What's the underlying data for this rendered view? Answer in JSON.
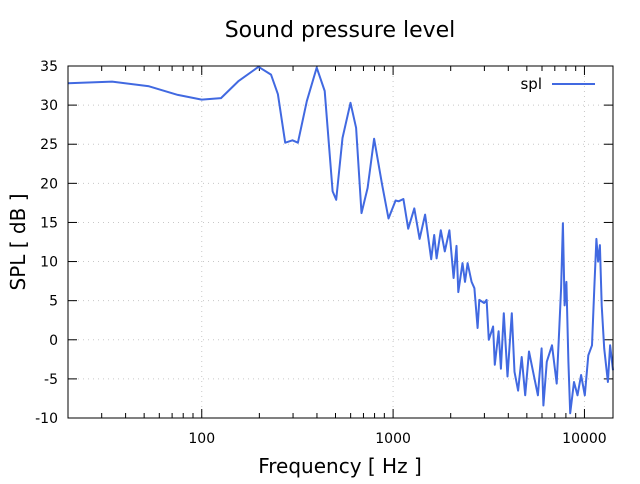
{
  "chart_data": {
    "type": "line",
    "title": "Sound pressure level",
    "xlabel": "Frequency [ Hz ]",
    "ylabel": "SPL [ dB ]",
    "xscale": "log",
    "xlim": [
      20,
      14100
    ],
    "ylim": [
      -10,
      35
    ],
    "xticks": [
      100,
      1000,
      10000
    ],
    "xtick_labels": [
      "100",
      "1000",
      "10000"
    ],
    "yticks": [
      -10,
      -5,
      0,
      5,
      10,
      15,
      20,
      25,
      30,
      35
    ],
    "ytick_labels": [
      "-10",
      "-5",
      "0",
      "5",
      "10",
      "15",
      "20",
      "25",
      "30",
      "35"
    ],
    "grid": true,
    "legend_position": "top-right",
    "colors": {
      "spl": "#4169e1"
    },
    "series": [
      {
        "name": "spl",
        "x": [
          20,
          34,
          53,
          75,
          100,
          126,
          156,
          198,
          230,
          250,
          273,
          298,
          318,
          354,
          399,
          439,
          483,
          504,
          544,
          599,
          641,
          684,
          736,
          796,
          875,
          946,
          1031,
          1069,
          1132,
          1199,
          1290,
          1376,
          1469,
          1581,
          1640,
          1687,
          1775,
          1862,
          1968,
          2072,
          2144,
          2191,
          2306,
          2375,
          2450,
          2572,
          2660,
          2765,
          2820,
          2991,
          3080,
          3162,
          3330,
          3400,
          3560,
          3660,
          3790,
          3960,
          4170,
          4310,
          4500,
          4700,
          4900,
          5130,
          5390,
          5710,
          5970,
          6100,
          6360,
          6770,
          7160,
          7390,
          7550,
          7720,
          7880,
          8050,
          8240,
          8420,
          8820,
          9200,
          9610,
          10040,
          10480,
          10950,
          11260,
          11540,
          11790,
          12050,
          12310,
          12690,
          13260,
          13620,
          14100
        ],
        "y": [
          32.8,
          33.0,
          32.4,
          31.3,
          30.7,
          30.9,
          33.1,
          34.9,
          33.9,
          31.4,
          25.2,
          25.5,
          25.2,
          30.5,
          34.8,
          31.8,
          19.0,
          17.9,
          25.8,
          30.3,
          27.1,
          16.2,
          19.4,
          25.7,
          19.9,
          15.5,
          17.8,
          17.7,
          18.0,
          14.2,
          16.8,
          12.9,
          16.0,
          10.3,
          13.4,
          10.4,
          14.0,
          11.3,
          14.0,
          7.9,
          12.0,
          6.1,
          9.8,
          7.4,
          9.8,
          7.4,
          6.6,
          1.5,
          5.1,
          4.7,
          5.1,
          0.0,
          1.7,
          -3.2,
          1.1,
          -3.7,
          3.4,
          -4.7,
          3.4,
          -4.1,
          -6.5,
          -2.2,
          -7.1,
          -1.5,
          -4.1,
          -7.1,
          -1.1,
          -8.4,
          -2.8,
          -0.7,
          -5.6,
          1.5,
          6.6,
          14.9,
          4.4,
          7.4,
          -2.8,
          -9.4,
          -5.4,
          -7.1,
          -4.5,
          -7.1,
          -2.0,
          -0.7,
          6.6,
          12.9,
          10.0,
          12.1,
          4.4,
          -1.1,
          -5.4,
          -0.7,
          -3.9
        ]
      }
    ]
  }
}
